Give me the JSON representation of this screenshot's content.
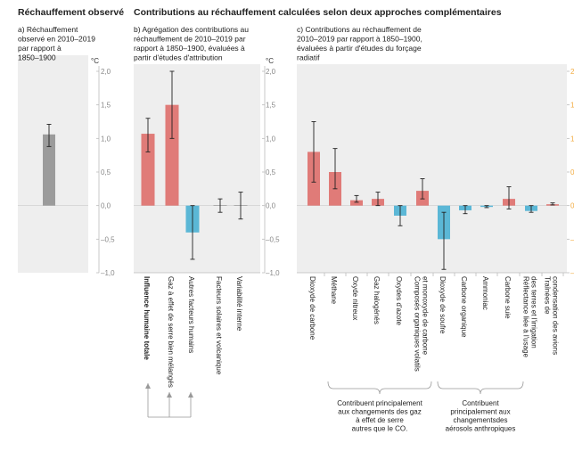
{
  "titles": {
    "observed": "Réchauffement observé",
    "contributions": "Contributions au réchauffement calculées selon deux approches complémentaires"
  },
  "colors": {
    "red": "#e07b78",
    "blue": "#5bb7d6",
    "grey": "#9b9b9b",
    "panel_bg": "#eeeeee",
    "axis_text": "#888888",
    "orange": "#f2a93b"
  },
  "chart_data": [
    {
      "id": "a",
      "type": "bar",
      "title": [
        "a) Réchauffement",
        "observé en 2010–2019",
        "par rapport à",
        "1850–1900"
      ],
      "unit": "°C",
      "ylim": [
        -1.0,
        2.0
      ],
      "yticks": [
        "2,0",
        "1,5",
        "1,0",
        "0,5",
        "0,0",
        "–0,5",
        "–1,0"
      ],
      "categories": [
        ""
      ],
      "values": [
        1.06
      ],
      "error_low": [
        0.88
      ],
      "error_high": [
        1.21
      ],
      "colors": [
        "grey"
      ]
    },
    {
      "id": "b",
      "type": "bar",
      "title": [
        "b) Agrégation des contributions au",
        "réchauffement de 2010–2019 par",
        "rapport à 1850–1900, évaluées à",
        "partir d'études d'attribution"
      ],
      "unit": "°C",
      "ylim": [
        -1.0,
        2.0
      ],
      "yticks": [
        "2,0",
        "1,5",
        "1,0",
        "0,5",
        "0,0",
        "–0,5",
        "–1,0"
      ],
      "categories": [
        "Influence humaine totale",
        "Gaz à effet de serre bien mélangés",
        "Autres facteurs humains",
        "Facteurs solaires et volcanique",
        "Variabilité interne"
      ],
      "values": [
        1.07,
        1.5,
        -0.4,
        0.0,
        0.0
      ],
      "error_low": [
        0.8,
        1.0,
        -0.8,
        -0.1,
        -0.2
      ],
      "error_high": [
        1.3,
        2.0,
        0.0,
        0.1,
        0.2
      ],
      "colors": [
        "red",
        "red",
        "blue",
        "none",
        "none"
      ]
    },
    {
      "id": "c",
      "type": "bar",
      "title": [
        "c) Contributions au réchauffement de",
        "2010–2019 par rapport à 1850–1900,",
        "évaluées à partir d'études du forçage",
        "radiatif"
      ],
      "ylim": [
        -1.0,
        2.0
      ],
      "categories": [
        "Dioxyde de carbone",
        "Méthane",
        "Oxyde nitreux",
        "Gaz halogénés",
        "Oxydes d'azote",
        "Composés organiques volatils et monoxyde de carbone",
        "Dioxyde de soufre",
        "Carbone organique",
        "Ammoniac",
        "Carbone suie",
        "Réflectance liée à l'usage des terres et l'irrigation",
        "Traînées de condensation des avions"
      ],
      "values": [
        0.8,
        0.5,
        0.08,
        0.1,
        -0.15,
        0.22,
        -0.5,
        -0.07,
        -0.02,
        0.1,
        -0.08,
        0.02
      ],
      "error_low": [
        0.35,
        0.25,
        0.05,
        0.0,
        -0.3,
        0.1,
        -0.95,
        -0.12,
        -0.03,
        -0.05,
        -0.1,
        0.01
      ],
      "error_high": [
        1.25,
        0.85,
        0.15,
        0.2,
        0.0,
        0.4,
        -0.1,
        0.0,
        0.0,
        0.28,
        0.0,
        0.04
      ],
      "colors": [
        "red",
        "red",
        "red",
        "red",
        "blue",
        "red",
        "blue",
        "blue",
        "blue",
        "red",
        "blue",
        "red"
      ],
      "brackets": [
        [
          "Contribuent principalement",
          "aux changements des gaz",
          "à effet de serre",
          "autres que le CO."
        ],
        [
          "Contribuent",
          "principalement aux",
          "changementsdes",
          "aérosols anthropiques"
        ]
      ]
    }
  ]
}
